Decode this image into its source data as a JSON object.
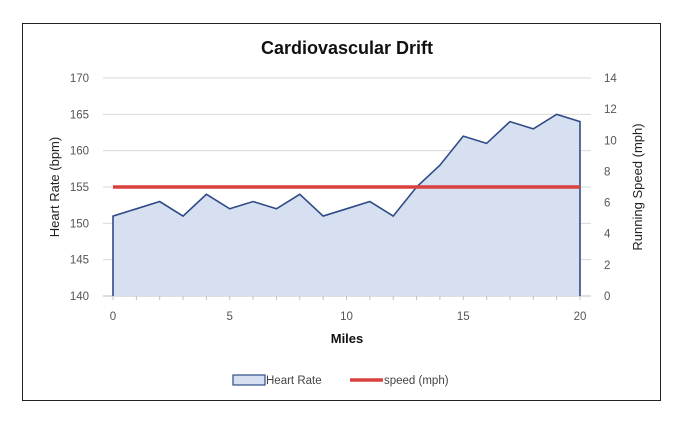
{
  "chart_data": {
    "type": "area",
    "title": "Cardiovascular Drift",
    "xlabel": "Miles",
    "ylabel": "Heart Rate (bpm)",
    "y2label": "Running Speed (mph)",
    "xlim": [
      0,
      20
    ],
    "ylim": [
      140,
      170
    ],
    "y2lim": [
      0,
      14
    ],
    "x_ticks": [
      "0",
      "5",
      "10",
      "15",
      "20"
    ],
    "y_ticks": [
      "140",
      "145",
      "150",
      "155",
      "160",
      "165",
      "170"
    ],
    "y2_ticks": [
      "0",
      "2",
      "4",
      "6",
      "8",
      "10",
      "12",
      "14"
    ],
    "grid": true,
    "legend_position": "bottom",
    "x": [
      0,
      1,
      2,
      3,
      4,
      5,
      6,
      7,
      8,
      9,
      10,
      11,
      12,
      13,
      14,
      15,
      16,
      17,
      18,
      19,
      20
    ],
    "series": [
      {
        "name": "Heart Rate",
        "type": "area",
        "axis": "left",
        "color": "#2f4b87",
        "fill": "#d6e0f1",
        "values": [
          151,
          152,
          153,
          151,
          154,
          152,
          153,
          152,
          154,
          151,
          152,
          153,
          151,
          155,
          158,
          162,
          161,
          164,
          163,
          165,
          164
        ]
      },
      {
        "name": "speed (mph)",
        "type": "line",
        "axis": "right",
        "color": "#d9413f",
        "values": [
          7,
          7,
          7,
          7,
          7,
          7,
          7,
          7,
          7,
          7,
          7,
          7,
          7,
          7,
          7,
          7,
          7,
          7,
          7,
          7,
          7
        ]
      }
    ]
  }
}
